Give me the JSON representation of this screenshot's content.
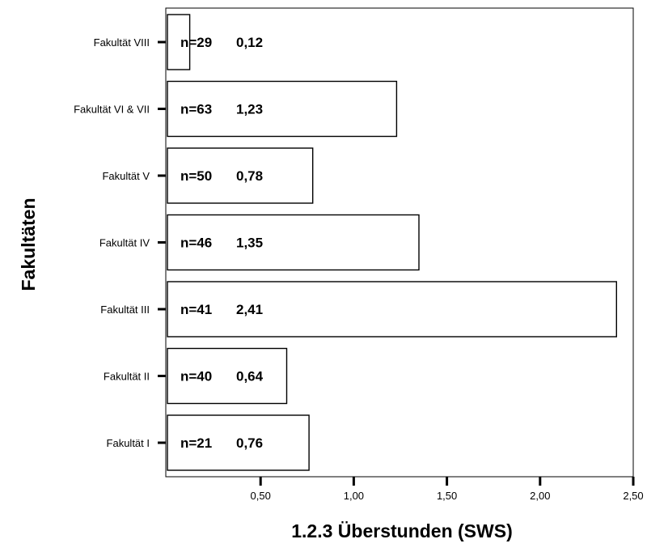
{
  "chart_data": {
    "type": "bar",
    "orientation": "horizontal",
    "categories": [
      "Fakultät I",
      "Fakultät II",
      "Fakultät III",
      "Fakultät IV",
      "Fakultät V",
      "Fakultät VI & VII",
      "Fakultät VIII"
    ],
    "values": [
      0.76,
      0.64,
      2.41,
      1.35,
      0.78,
      1.23,
      0.12
    ],
    "n": [
      "n=21",
      "n=40",
      "n=41",
      "n=46",
      "n=50",
      "n=63",
      "n=29"
    ],
    "value_labels": [
      "0,76",
      "0,64",
      "2,41",
      "1,35",
      "0,78",
      "1,23",
      "0,12"
    ],
    "xlabel": "1.2.3 Überstunden (SWS)",
    "ylabel": "Fakultäten",
    "xlim": [
      0,
      2.5
    ],
    "xticks": [
      0.5,
      1.0,
      1.5,
      2.0,
      2.5
    ],
    "xtick_labels": [
      "0,50",
      "1,00",
      "1,50",
      "2,00",
      "2,50"
    ],
    "grid": false,
    "bar_fill": "#ffffff",
    "bar_stroke": "#000000"
  }
}
